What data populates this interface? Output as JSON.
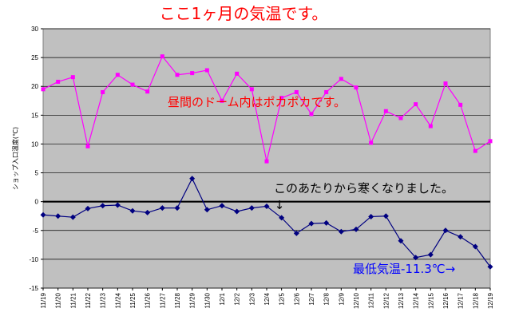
{
  "chart_data": {
    "type": "line",
    "title": "ここ1ヶ月の気温です。",
    "ylabel": "ショップ入口温度(℃)",
    "xlabel": "",
    "ylim": [
      -15,
      30
    ],
    "yticks": [
      30,
      25,
      20,
      15,
      10,
      5,
      0,
      -5,
      -10,
      -15
    ],
    "grid": true,
    "legend": "none",
    "categories": [
      "11/19",
      "11/20",
      "11/21",
      "11/22",
      "11/23",
      "11/24",
      "11/25",
      "11/26",
      "11/27",
      "11/28",
      "11/29",
      "11/30",
      "12/1",
      "12/2",
      "12/3",
      "12/4",
      "12/5",
      "12/6",
      "12/7",
      "12/8",
      "12/9",
      "12/10",
      "12/11",
      "12/12",
      "12/13",
      "12/14",
      "12/15",
      "12/16",
      "12/17",
      "12/18",
      "12/19"
    ],
    "series": [
      {
        "color": "#ff00ff",
        "marker": "square",
        "values": [
          19.5,
          20.8,
          21.6,
          9.6,
          19.0,
          22.0,
          20.3,
          19.1,
          25.2,
          22.0,
          22.3,
          22.8,
          17.5,
          22.2,
          19.5,
          7.0,
          18.0,
          19.0,
          15.2,
          19.0,
          21.3,
          19.8,
          10.2,
          15.7,
          14.5,
          16.9,
          13.1,
          20.5,
          16.8,
          8.8,
          10.5
        ]
      },
      {
        "color": "#000080",
        "marker": "diamond",
        "values": [
          -2.3,
          -2.5,
          -2.7,
          -1.2,
          -0.7,
          -0.6,
          -1.6,
          -1.9,
          -1.1,
          -1.1,
          4.0,
          -1.4,
          -0.7,
          -1.7,
          -1.1,
          -0.8,
          -2.8,
          -5.5,
          -3.8,
          -3.7,
          -5.2,
          -4.8,
          -2.6,
          -2.5,
          -6.8,
          -9.7,
          -9.2,
          -5.0,
          -6.1,
          -7.8,
          -11.3
        ]
      }
    ],
    "annotations": {
      "daytime": "昼間のドーム内はポカポカです。",
      "cold": "このあたりから寒くなりました。",
      "cold_arrow": "↓",
      "min_temp": "最低気温-11.3℃→"
    },
    "colors": {
      "plot_bg": "#c0c0c0",
      "zero_line": "#000000",
      "title": "#ff0000",
      "annotation_daytime": "#ff0000",
      "annotation_min": "#0000ff"
    }
  }
}
